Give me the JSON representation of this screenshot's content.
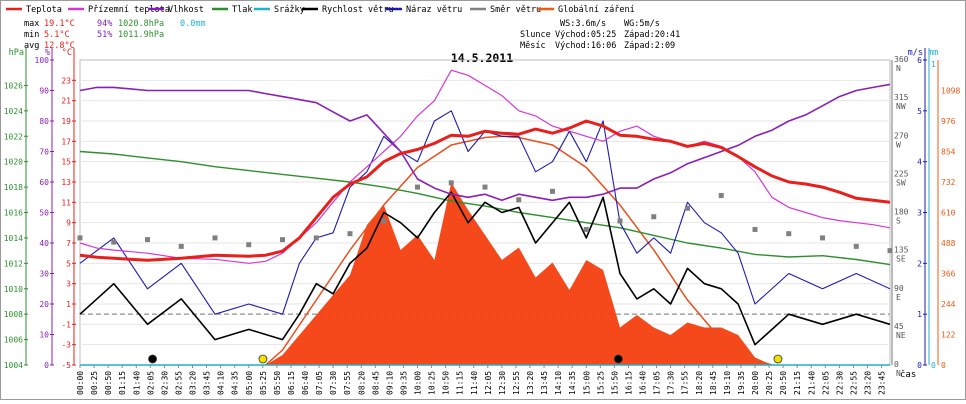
{
  "legend": [
    {
      "label": "Teplota",
      "color": "#e8201c"
    },
    {
      "label": "Přízemní teplota",
      "color": "#d338d3"
    },
    {
      "label": "Vlhkost",
      "color": "#8a1fb8"
    },
    {
      "label": "Tlak",
      "color": "#2f8f2f"
    },
    {
      "label": "Srážky",
      "color": "#20b0d0"
    },
    {
      "label": "Rychlost větru",
      "color": "#000000"
    },
    {
      "label": "Náraz větru",
      "color": "#1b1bb0"
    },
    {
      "label": "Směr větru",
      "color": "#808080"
    },
    {
      "label": "Globální záření",
      "color": "#f05a14"
    }
  ],
  "stats": {
    "max_label": "max",
    "max_temp": "19.1°C",
    "max_hum": "94%",
    "max_press": "1020.8hPa",
    "max_rain": "0.0mm",
    "min_label": "min",
    "min_temp": "5.1°C",
    "min_hum": "51%",
    "min_press": "1011.9hPa",
    "avg_label": "avg",
    "avg_temp": "12.8°C"
  },
  "wind_info": {
    "ws": "WS:3.6m/s",
    "wg": "WG:5m/s"
  },
  "sun": {
    "label": "Slunce",
    "rise": "Východ:05:25",
    "set": "Západ:20:41"
  },
  "moon": {
    "label": "Měsíc",
    "rise": "Východ:16:06",
    "set": "Západ:2:09"
  },
  "chart_data": {
    "type": "line",
    "title": "14.5.2011",
    "xlabel": "čas",
    "x_ticks": [
      "00:00",
      "00:25",
      "00:50",
      "01:15",
      "01:40",
      "02:05",
      "02:30",
      "02:55",
      "03:20",
      "03:45",
      "04:10",
      "04:35",
      "05:00",
      "05:25",
      "05:50",
      "06:15",
      "06:40",
      "07:05",
      "07:30",
      "07:55",
      "08:20",
      "08:45",
      "09:10",
      "09:35",
      "10:00",
      "10:25",
      "10:50",
      "11:15",
      "11:40",
      "12:05",
      "12:30",
      "12:55",
      "13:20",
      "13:45",
      "14:10",
      "14:35",
      "15:00",
      "15:25",
      "15:50",
      "16:15",
      "16:40",
      "17:05",
      "17:30",
      "17:55",
      "18:20",
      "18:45",
      "19:10",
      "19:35",
      "20:00",
      "20:25",
      "20:50",
      "21:15",
      "21:40",
      "22:05",
      "22:30",
      "22:55",
      "23:20",
      "23:45"
    ],
    "axes": {
      "hpa": {
        "label": "hPa",
        "ticks": [
          "1026",
          "1024",
          "1022",
          "1020",
          "1018",
          "1016",
          "1014",
          "1012",
          "1010",
          "1008",
          "1006",
          "1004"
        ],
        "range": [
          1004,
          1028
        ]
      },
      "percent": {
        "label": "%",
        "ticks": [
          "100",
          "90",
          "80",
          "70",
          "60",
          "50",
          "40",
          "30",
          "20",
          "10",
          "0"
        ],
        "range": [
          0,
          100
        ]
      },
      "celsius": {
        "label": "°C",
        "ticks": [
          "23",
          "21",
          "19",
          "17",
          "15",
          "13",
          "11",
          "9",
          "7",
          "5",
          "3",
          "1",
          "-1",
          "-3",
          "-5"
        ],
        "range": [
          -5,
          25
        ]
      },
      "direction": {
        "ticks": [
          "360",
          "315",
          "270",
          "225",
          "180",
          "135",
          "90",
          "45",
          "0"
        ],
        "labels": [
          "N",
          "NW",
          "W",
          "SW",
          "S",
          "SE",
          "E",
          "NE",
          "N"
        ]
      },
      "ms": {
        "label": "m/s",
        "ticks": [
          "6",
          "5",
          "4",
          "3",
          "2",
          "1",
          "0"
        ],
        "range": [
          0,
          6
        ]
      },
      "mm": {
        "label": "mm",
        "ticks": [
          "1",
          "0"
        ],
        "range": [
          0,
          1
        ]
      },
      "wm2": {
        "ticks": [
          "1098",
          "976",
          "854",
          "732",
          "610",
          "488",
          "366",
          "244",
          "122",
          "0"
        ],
        "range": [
          0,
          1220
        ]
      }
    },
    "series": [
      {
        "name": "Teplota",
        "unit": "°C",
        "hours": [
          0,
          0.5,
          1,
          2,
          3,
          4,
          5,
          5.5,
          6,
          6.5,
          7,
          7.5,
          8,
          8.5,
          9,
          9.5,
          10,
          10.5,
          11,
          11.5,
          12,
          12.5,
          13,
          13.5,
          14,
          14.5,
          15,
          15.5,
          16,
          16.5,
          17,
          17.5,
          18,
          18.5,
          19,
          19.5,
          20,
          20.5,
          21,
          21.5,
          22,
          22.5,
          23,
          23.5,
          24
        ],
        "values": [
          5.8,
          5.6,
          5.5,
          5.3,
          5.5,
          5.8,
          5.7,
          5.8,
          6.2,
          7.5,
          9.5,
          11.5,
          12.8,
          13.5,
          15,
          15.8,
          16.2,
          16.8,
          17.6,
          17.5,
          18,
          17.8,
          17.7,
          18.2,
          17.8,
          18.3,
          19,
          18.5,
          17.6,
          17.5,
          17.2,
          17,
          16.5,
          16.8,
          16.4,
          15.5,
          14.5,
          13.6,
          13,
          12.8,
          12.5,
          12,
          11.4,
          11.2,
          11
        ]
      },
      {
        "name": "Přízemní teplota",
        "unit": "°C",
        "hours": [
          0,
          0.5,
          1,
          2,
          3,
          4,
          5,
          5.5,
          6,
          6.5,
          7,
          7.5,
          8,
          8.5,
          9,
          9.5,
          10,
          10.5,
          11,
          11.5,
          12,
          12.5,
          13,
          13.5,
          14,
          14.5,
          15,
          15.5,
          16,
          16.5,
          17,
          17.5,
          18,
          18.5,
          19,
          19.5,
          20,
          20.5,
          21,
          21.5,
          22,
          22.5,
          23,
          23.5,
          24
        ],
        "values": [
          7,
          6.5,
          6.3,
          6,
          5.5,
          5.4,
          5,
          5.2,
          6,
          7.5,
          9,
          11,
          13,
          14.5,
          16,
          17.5,
          19.5,
          21,
          24,
          23.5,
          22.5,
          21.5,
          20,
          19.5,
          18.5,
          18,
          17.5,
          17,
          18,
          18.5,
          17.5,
          17,
          16.5,
          17,
          16.5,
          15.5,
          14,
          11.5,
          10.5,
          10,
          9.5,
          9.2,
          9,
          8.8,
          8.5
        ]
      },
      {
        "name": "Vlhkost",
        "unit": "%",
        "hours": [
          0,
          0.5,
          1,
          2,
          3,
          4,
          5,
          5.5,
          6,
          6.5,
          7,
          7.5,
          8,
          8.5,
          9,
          9.5,
          10,
          10.5,
          11,
          11.5,
          12,
          12.5,
          13,
          13.5,
          14,
          14.5,
          15,
          15.5,
          16,
          16.5,
          17,
          17.5,
          18,
          18.5,
          19,
          19.5,
          20,
          20.5,
          21,
          21.5,
          22,
          22.5,
          23,
          23.5,
          24
        ],
        "values": [
          90,
          91,
          91,
          90,
          90,
          90,
          90,
          89,
          88,
          87,
          86,
          83,
          80,
          82,
          76,
          70,
          61,
          58,
          56,
          55,
          56,
          54,
          56,
          55,
          54,
          55,
          55,
          56,
          58,
          58,
          61,
          63,
          66,
          68,
          70,
          72,
          75,
          77,
          80,
          82,
          85,
          88,
          90,
          91,
          92
        ]
      },
      {
        "name": "Tlak",
        "unit": "hPa",
        "hours": [
          0,
          1,
          2,
          3,
          4,
          5,
          6,
          7,
          8,
          9,
          10,
          11,
          12,
          13,
          14,
          15,
          16,
          17,
          18,
          19,
          20,
          21,
          22,
          23,
          24
        ],
        "values": [
          1020.8,
          1020.6,
          1020.3,
          1020,
          1019.6,
          1019.3,
          1019,
          1018.7,
          1018.4,
          1018,
          1017.5,
          1016.9,
          1016.5,
          1016,
          1015.6,
          1015.2,
          1014.8,
          1014.2,
          1013.6,
          1013.2,
          1012.7,
          1012.5,
          1012.6,
          1012.3,
          1011.9
        ]
      },
      {
        "name": "Srážky",
        "unit": "mm",
        "hours": [
          0,
          24
        ],
        "values": [
          0,
          0
        ]
      },
      {
        "name": "Rychlost větru",
        "unit": "m/s",
        "hours": [
          0,
          1,
          2,
          3,
          4,
          5,
          6,
          6.5,
          7,
          7.5,
          8,
          8.5,
          9,
          9.5,
          10,
          10.5,
          11,
          11.5,
          12,
          12.5,
          13,
          13.5,
          14,
          14.5,
          15,
          15.5,
          16,
          16.5,
          17,
          17.5,
          18,
          18.5,
          19,
          19.5,
          20,
          21,
          22,
          23,
          24
        ],
        "values": [
          1,
          1.6,
          0.8,
          1.3,
          0.5,
          0.7,
          0.5,
          1,
          1.6,
          1.4,
          2,
          2.3,
          3,
          2.8,
          2.5,
          3,
          3.4,
          2.8,
          3.2,
          3,
          3.1,
          2.4,
          2.8,
          3.2,
          2.5,
          3.3,
          1.8,
          1.3,
          1.5,
          1.2,
          1.9,
          1.6,
          1.5,
          1.2,
          0.4,
          1,
          0.8,
          1,
          0.8
        ]
      },
      {
        "name": "Náraz větru",
        "unit": "m/s",
        "hours": [
          0,
          1,
          2,
          3,
          4,
          5,
          6,
          6.5,
          7,
          7.5,
          8,
          8.5,
          9,
          9.5,
          10,
          10.5,
          11,
          11.5,
          12,
          12.5,
          13,
          13.5,
          14,
          14.5,
          15,
          15.5,
          16,
          16.5,
          17,
          17.5,
          18,
          18.5,
          19,
          19.5,
          20,
          21,
          22,
          23,
          24
        ],
        "values": [
          2,
          2.5,
          1.5,
          2,
          1,
          1.2,
          1,
          2,
          2.5,
          2.6,
          3.5,
          3.8,
          4.5,
          4.2,
          4,
          4.8,
          5,
          4.2,
          4.6,
          4.5,
          4.5,
          3.8,
          4,
          4.6,
          4,
          4.8,
          2.8,
          2.2,
          2.5,
          2.2,
          3.2,
          2.8,
          2.6,
          2.2,
          1.2,
          1.8,
          1.5,
          1.8,
          1.5
        ]
      },
      {
        "name": "Směr větru",
        "unit": "°",
        "hours": [
          0,
          1,
          2,
          3,
          4,
          5,
          6,
          7,
          8,
          9,
          10,
          11,
          12,
          13,
          14,
          15,
          16,
          17,
          18,
          19,
          20,
          21,
          22,
          23,
          24
        ],
        "values": [
          150,
          145,
          148,
          140,
          150,
          142,
          148,
          150,
          155,
          170,
          210,
          215,
          210,
          195,
          205,
          160,
          170,
          175,
          185,
          200,
          160,
          155,
          150,
          140,
          135
        ]
      },
      {
        "name": "Globální záření",
        "unit": "W/m²",
        "hours": [
          5.5,
          6,
          6.5,
          7,
          7.5,
          8,
          8.5,
          9,
          9.5,
          10,
          10.5,
          11,
          11.5,
          12,
          12.5,
          13,
          13.5,
          14,
          14.5,
          15,
          15.5,
          16,
          16.5,
          17,
          17.5,
          18,
          18.5,
          19,
          19.5,
          20,
          20.5
        ],
        "values": [
          0,
          40,
          120,
          200,
          280,
          360,
          560,
          640,
          460,
          520,
          420,
          730,
          620,
          520,
          420,
          470,
          350,
          410,
          300,
          420,
          380,
          150,
          200,
          150,
          120,
          170,
          150,
          150,
          120,
          30,
          0
        ]
      }
    ],
    "clear_sky_radiation": {
      "hours": [
        5.5,
        6,
        7,
        8,
        9,
        10,
        11,
        12,
        12.5,
        13,
        14,
        15,
        16,
        17,
        18,
        19,
        20,
        20.5
      ],
      "values": [
        0,
        60,
        260,
        460,
        640,
        790,
        880,
        910,
        915,
        910,
        880,
        790,
        640,
        460,
        260,
        100,
        20,
        0
      ]
    }
  }
}
